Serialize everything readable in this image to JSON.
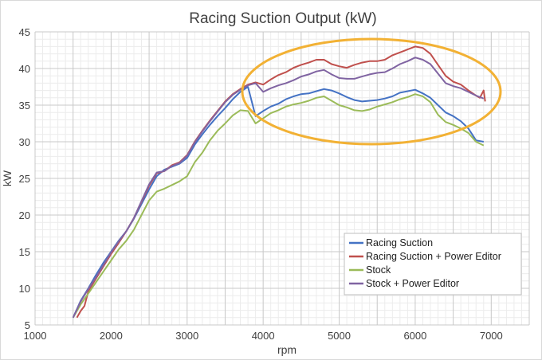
{
  "chart_data": {
    "type": "line",
    "title": "Racing Suction Output (kW)",
    "xlabel": "rpm",
    "ylabel": "kW",
    "xlim": [
      1000,
      7500
    ],
    "ylim": [
      5,
      45
    ],
    "x_ticks": [
      1000,
      2000,
      3000,
      4000,
      5000,
      6000,
      7000
    ],
    "y_ticks": [
      5,
      10,
      15,
      20,
      25,
      30,
      35,
      40,
      45
    ],
    "grid": true,
    "legend_position": "bottom-right",
    "annotation": "orange ellipse highlighting 3800–7000 rpm region",
    "series": [
      {
        "name": "Racing Suction",
        "color": "#4472c4",
        "points": [
          [
            1500,
            6
          ],
          [
            1600,
            8.3
          ],
          [
            1700,
            10
          ],
          [
            1800,
            11.8
          ],
          [
            1900,
            13.5
          ],
          [
            2000,
            15
          ],
          [
            2100,
            16.5
          ],
          [
            2200,
            17.8
          ],
          [
            2300,
            19.5
          ],
          [
            2400,
            21.5
          ],
          [
            2500,
            23.5
          ],
          [
            2600,
            25.3
          ],
          [
            2700,
            26.2
          ],
          [
            2800,
            26.6
          ],
          [
            2900,
            27
          ],
          [
            3000,
            27.8
          ],
          [
            3100,
            29.6
          ],
          [
            3200,
            31
          ],
          [
            3300,
            32.3
          ],
          [
            3400,
            33.5
          ],
          [
            3500,
            34.6
          ],
          [
            3600,
            35.8
          ],
          [
            3700,
            36.8
          ],
          [
            3800,
            37.5
          ],
          [
            3900,
            33.5
          ],
          [
            4000,
            34.2
          ],
          [
            4100,
            34.8
          ],
          [
            4200,
            35.2
          ],
          [
            4300,
            35.8
          ],
          [
            4400,
            36.2
          ],
          [
            4500,
            36.5
          ],
          [
            4600,
            36.6
          ],
          [
            4700,
            36.9
          ],
          [
            4800,
            37.2
          ],
          [
            4900,
            37
          ],
          [
            5000,
            36.6
          ],
          [
            5100,
            36.1
          ],
          [
            5200,
            35.7
          ],
          [
            5300,
            35.5
          ],
          [
            5400,
            35.6
          ],
          [
            5500,
            35.7
          ],
          [
            5600,
            35.9
          ],
          [
            5700,
            36.2
          ],
          [
            5800,
            36.7
          ],
          [
            5900,
            36.9
          ],
          [
            6000,
            37.1
          ],
          [
            6100,
            36.6
          ],
          [
            6200,
            36
          ],
          [
            6300,
            35
          ],
          [
            6400,
            34
          ],
          [
            6500,
            33.5
          ],
          [
            6600,
            32.8
          ],
          [
            6700,
            31.8
          ],
          [
            6800,
            30.2
          ],
          [
            6900,
            30
          ]
        ]
      },
      {
        "name": "Racing Suction + Power Editor",
        "color": "#c0504d",
        "points": [
          [
            1550,
            6
          ],
          [
            1600,
            6.9
          ],
          [
            1650,
            7.6
          ],
          [
            1700,
            9.6
          ],
          [
            1800,
            11.3
          ],
          [
            1900,
            13
          ],
          [
            2000,
            14.7
          ],
          [
            2100,
            16.2
          ],
          [
            2200,
            17.8
          ],
          [
            2300,
            19.6
          ],
          [
            2400,
            21.8
          ],
          [
            2500,
            24
          ],
          [
            2600,
            25.7
          ],
          [
            2700,
            26
          ],
          [
            2800,
            26.8
          ],
          [
            2900,
            27.2
          ],
          [
            3000,
            28.2
          ],
          [
            3100,
            30
          ],
          [
            3200,
            31.5
          ],
          [
            3300,
            32.9
          ],
          [
            3400,
            34.2
          ],
          [
            3500,
            35.5
          ],
          [
            3600,
            36.5
          ],
          [
            3700,
            37.2
          ],
          [
            3800,
            37.8
          ],
          [
            3900,
            38.1
          ],
          [
            4000,
            37.8
          ],
          [
            4100,
            38.5
          ],
          [
            4200,
            39.1
          ],
          [
            4300,
            39.5
          ],
          [
            4400,
            40.1
          ],
          [
            4500,
            40.5
          ],
          [
            4600,
            40.8
          ],
          [
            4700,
            41.2
          ],
          [
            4800,
            41.2
          ],
          [
            4900,
            40.6
          ],
          [
            5000,
            40.3
          ],
          [
            5100,
            40.1
          ],
          [
            5200,
            40.5
          ],
          [
            5300,
            40.8
          ],
          [
            5400,
            41
          ],
          [
            5500,
            41
          ],
          [
            5600,
            41.2
          ],
          [
            5700,
            41.8
          ],
          [
            5800,
            42.2
          ],
          [
            5900,
            42.6
          ],
          [
            6000,
            43
          ],
          [
            6100,
            42.8
          ],
          [
            6200,
            42
          ],
          [
            6300,
            40.5
          ],
          [
            6400,
            39
          ],
          [
            6500,
            38.2
          ],
          [
            6600,
            37.8
          ],
          [
            6700,
            37
          ],
          [
            6800,
            36.3
          ],
          [
            6850,
            36
          ],
          [
            6900,
            37
          ],
          [
            6920,
            35.5
          ]
        ]
      },
      {
        "name": "Stock",
        "color": "#9bbb59",
        "points": [
          [
            1500,
            6
          ],
          [
            1600,
            7.8
          ],
          [
            1700,
            9.3
          ],
          [
            1800,
            10.8
          ],
          [
            1900,
            12.3
          ],
          [
            2000,
            13.8
          ],
          [
            2100,
            15.3
          ],
          [
            2200,
            16.5
          ],
          [
            2300,
            18
          ],
          [
            2400,
            20
          ],
          [
            2500,
            22
          ],
          [
            2600,
            23.2
          ],
          [
            2700,
            23.6
          ],
          [
            2800,
            24.1
          ],
          [
            2900,
            24.6
          ],
          [
            3000,
            25.3
          ],
          [
            3100,
            27.2
          ],
          [
            3200,
            28.5
          ],
          [
            3300,
            30.2
          ],
          [
            3400,
            31.5
          ],
          [
            3500,
            32.5
          ],
          [
            3600,
            33.6
          ],
          [
            3700,
            34.3
          ],
          [
            3800,
            34.2
          ],
          [
            3900,
            32.5
          ],
          [
            4000,
            33.2
          ],
          [
            4100,
            33.9
          ],
          [
            4200,
            34.3
          ],
          [
            4300,
            34.8
          ],
          [
            4400,
            35.1
          ],
          [
            4500,
            35.3
          ],
          [
            4600,
            35.6
          ],
          [
            4700,
            36
          ],
          [
            4800,
            36.2
          ],
          [
            4900,
            35.6
          ],
          [
            5000,
            35
          ],
          [
            5100,
            34.7
          ],
          [
            5200,
            34.3
          ],
          [
            5300,
            34.2
          ],
          [
            5400,
            34.4
          ],
          [
            5500,
            34.8
          ],
          [
            5600,
            35.1
          ],
          [
            5700,
            35.4
          ],
          [
            5800,
            35.8
          ],
          [
            5900,
            36.1
          ],
          [
            6000,
            36.5
          ],
          [
            6100,
            36.2
          ],
          [
            6200,
            35.4
          ],
          [
            6300,
            33.7
          ],
          [
            6400,
            32.7
          ],
          [
            6500,
            32.3
          ],
          [
            6600,
            31.8
          ],
          [
            6700,
            31.2
          ],
          [
            6800,
            30
          ],
          [
            6900,
            29.5
          ]
        ]
      },
      {
        "name": "Stock + Power Editor",
        "color": "#8064a2",
        "points": [
          [
            1500,
            6
          ],
          [
            1600,
            8.2
          ],
          [
            1700,
            9.9
          ],
          [
            1800,
            11.5
          ],
          [
            1900,
            13.2
          ],
          [
            2000,
            14.9
          ],
          [
            2100,
            16.4
          ],
          [
            2200,
            17.8
          ],
          [
            2300,
            19.6
          ],
          [
            2400,
            21.9
          ],
          [
            2500,
            24.2
          ],
          [
            2600,
            25.8
          ],
          [
            2700,
            26
          ],
          [
            2800,
            26.7
          ],
          [
            2900,
            27.1
          ],
          [
            3000,
            28.1
          ],
          [
            3100,
            29.9
          ],
          [
            3200,
            31.4
          ],
          [
            3300,
            32.8
          ],
          [
            3400,
            34.1
          ],
          [
            3500,
            35.4
          ],
          [
            3600,
            36.4
          ],
          [
            3700,
            37.1
          ],
          [
            3800,
            37.7
          ],
          [
            3900,
            38
          ],
          [
            4000,
            36.8
          ],
          [
            4100,
            37.3
          ],
          [
            4200,
            37.7
          ],
          [
            4300,
            38
          ],
          [
            4400,
            38.4
          ],
          [
            4500,
            38.9
          ],
          [
            4600,
            39.2
          ],
          [
            4700,
            39.6
          ],
          [
            4800,
            39.8
          ],
          [
            4900,
            39.2
          ],
          [
            5000,
            38.7
          ],
          [
            5100,
            38.6
          ],
          [
            5200,
            38.6
          ],
          [
            5300,
            38.9
          ],
          [
            5400,
            39.2
          ],
          [
            5500,
            39.4
          ],
          [
            5600,
            39.5
          ],
          [
            5700,
            40
          ],
          [
            5800,
            40.6
          ],
          [
            5900,
            41
          ],
          [
            6000,
            41.5
          ],
          [
            6100,
            41.2
          ],
          [
            6200,
            40.6
          ],
          [
            6300,
            39.3
          ],
          [
            6400,
            38
          ],
          [
            6500,
            37.6
          ],
          [
            6600,
            37.3
          ],
          [
            6700,
            36.8
          ],
          [
            6800,
            36.3
          ],
          [
            6900,
            35.9
          ]
        ]
      }
    ]
  }
}
